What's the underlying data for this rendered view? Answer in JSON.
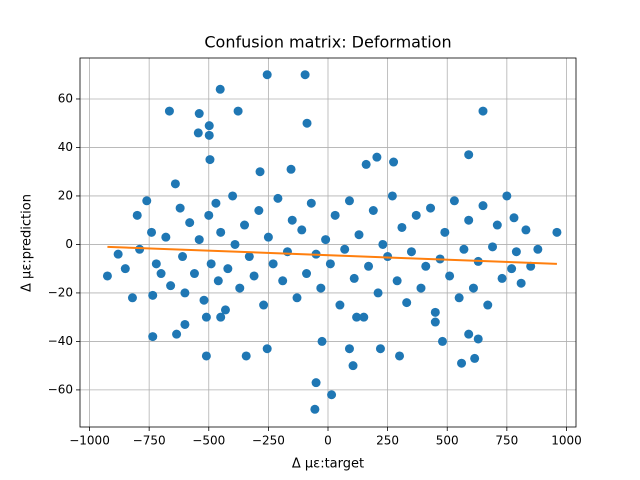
{
  "chart_data": {
    "type": "scatter",
    "title": "Confusion matrix: Deformation",
    "x_label": "Δ με:target",
    "y_label": "Δ με:prediction",
    "grid": true,
    "xlim": [
      -1040,
      1040
    ],
    "ylim": [
      -75.3,
      76.9
    ],
    "xticks": [
      {
        "value": -1000,
        "label": "−1000"
      },
      {
        "value": -750,
        "label": "−750"
      },
      {
        "value": -500,
        "label": "−500"
      },
      {
        "value": -250,
        "label": "−250"
      },
      0,
      250,
      500,
      750,
      1000
    ],
    "yticks": [
      {
        "value": -60,
        "label": "−60"
      },
      {
        "value": -40,
        "label": "−40"
      },
      {
        "value": -20,
        "label": "−20"
      },
      0,
      20,
      40,
      60
    ],
    "series": [
      {
        "type": "scatter",
        "color": "#1f77b4",
        "x": [
          -925,
          -880,
          -850,
          -820,
          -800,
          -790,
          -760,
          -740,
          -735,
          -720,
          -700,
          -680,
          -660,
          -640,
          -620,
          -610,
          -600,
          -580,
          -560,
          -540,
          -520,
          -510,
          -500,
          -490,
          -470,
          -460,
          -450,
          -430,
          -420,
          -400,
          -390,
          -370,
          -350,
          -330,
          -310,
          -290,
          -270,
          -250,
          -230,
          -210,
          -190,
          -170,
          -150,
          -130,
          -110,
          -90,
          -70,
          -50,
          -30,
          -10,
          10,
          30,
          50,
          70,
          90,
          110,
          130,
          150,
          170,
          190,
          210,
          230,
          250,
          270,
          290,
          310,
          330,
          350,
          370,
          390,
          410,
          430,
          450,
          470,
          490,
          510,
          530,
          550,
          570,
          590,
          610,
          630,
          650,
          670,
          690,
          710,
          730,
          750,
          770,
          790,
          810,
          830,
          850,
          880,
          960,
          -600,
          -450,
          120,
          450,
          780,
          -255,
          -96,
          -452,
          -665,
          -377,
          650,
          -88,
          -498,
          -498,
          -540,
          -544,
          -495,
          590,
          160,
          205,
          275,
          -155,
          -285,
          480,
          590,
          615,
          560,
          630,
          -55,
          15,
          -50,
          -510,
          -343,
          -255,
          90,
          105,
          220,
          300,
          -735,
          -635,
          -25
        ],
        "values": [
          -13,
          -4,
          -10,
          -22,
          12,
          -2,
          18,
          5,
          -21,
          -8,
          -12,
          3,
          -17,
          25,
          15,
          -5,
          -20,
          9,
          -12,
          2,
          -23,
          -30,
          12,
          -8,
          17,
          -15,
          5,
          -27,
          -10,
          20,
          0,
          -18,
          8,
          -5,
          -13,
          14,
          -25,
          3,
          -8,
          19,
          -15,
          -3,
          10,
          -22,
          6,
          -12,
          17,
          -4,
          -18,
          2,
          -8,
          12,
          -25,
          -2,
          18,
          -14,
          4,
          -30,
          -9,
          14,
          -20,
          0,
          -5,
          20,
          -15,
          7,
          -24,
          -3,
          12,
          -18,
          -9,
          15,
          -28,
          -6,
          5,
          -13,
          18,
          -22,
          -2,
          10,
          -18,
          -7,
          16,
          -25,
          -1,
          8,
          -14,
          20,
          -10,
          -3,
          -16,
          6,
          -9,
          -2,
          5,
          -33,
          -30,
          -30,
          -32,
          11,
          70,
          70,
          64,
          55,
          55,
          55,
          50,
          49,
          45,
          54,
          46,
          35,
          37,
          33,
          36,
          34,
          31,
          30,
          -40,
          -37,
          -47,
          -49,
          -39,
          -68,
          -62,
          -57,
          -46,
          -46,
          -43,
          -43,
          -50,
          -43,
          -46,
          -38,
          -37,
          -40
        ]
      },
      {
        "type": "line",
        "color": "#ff7f0e",
        "x": [
          -925,
          960
        ],
        "values": [
          -1,
          -8
        ]
      }
    ]
  }
}
